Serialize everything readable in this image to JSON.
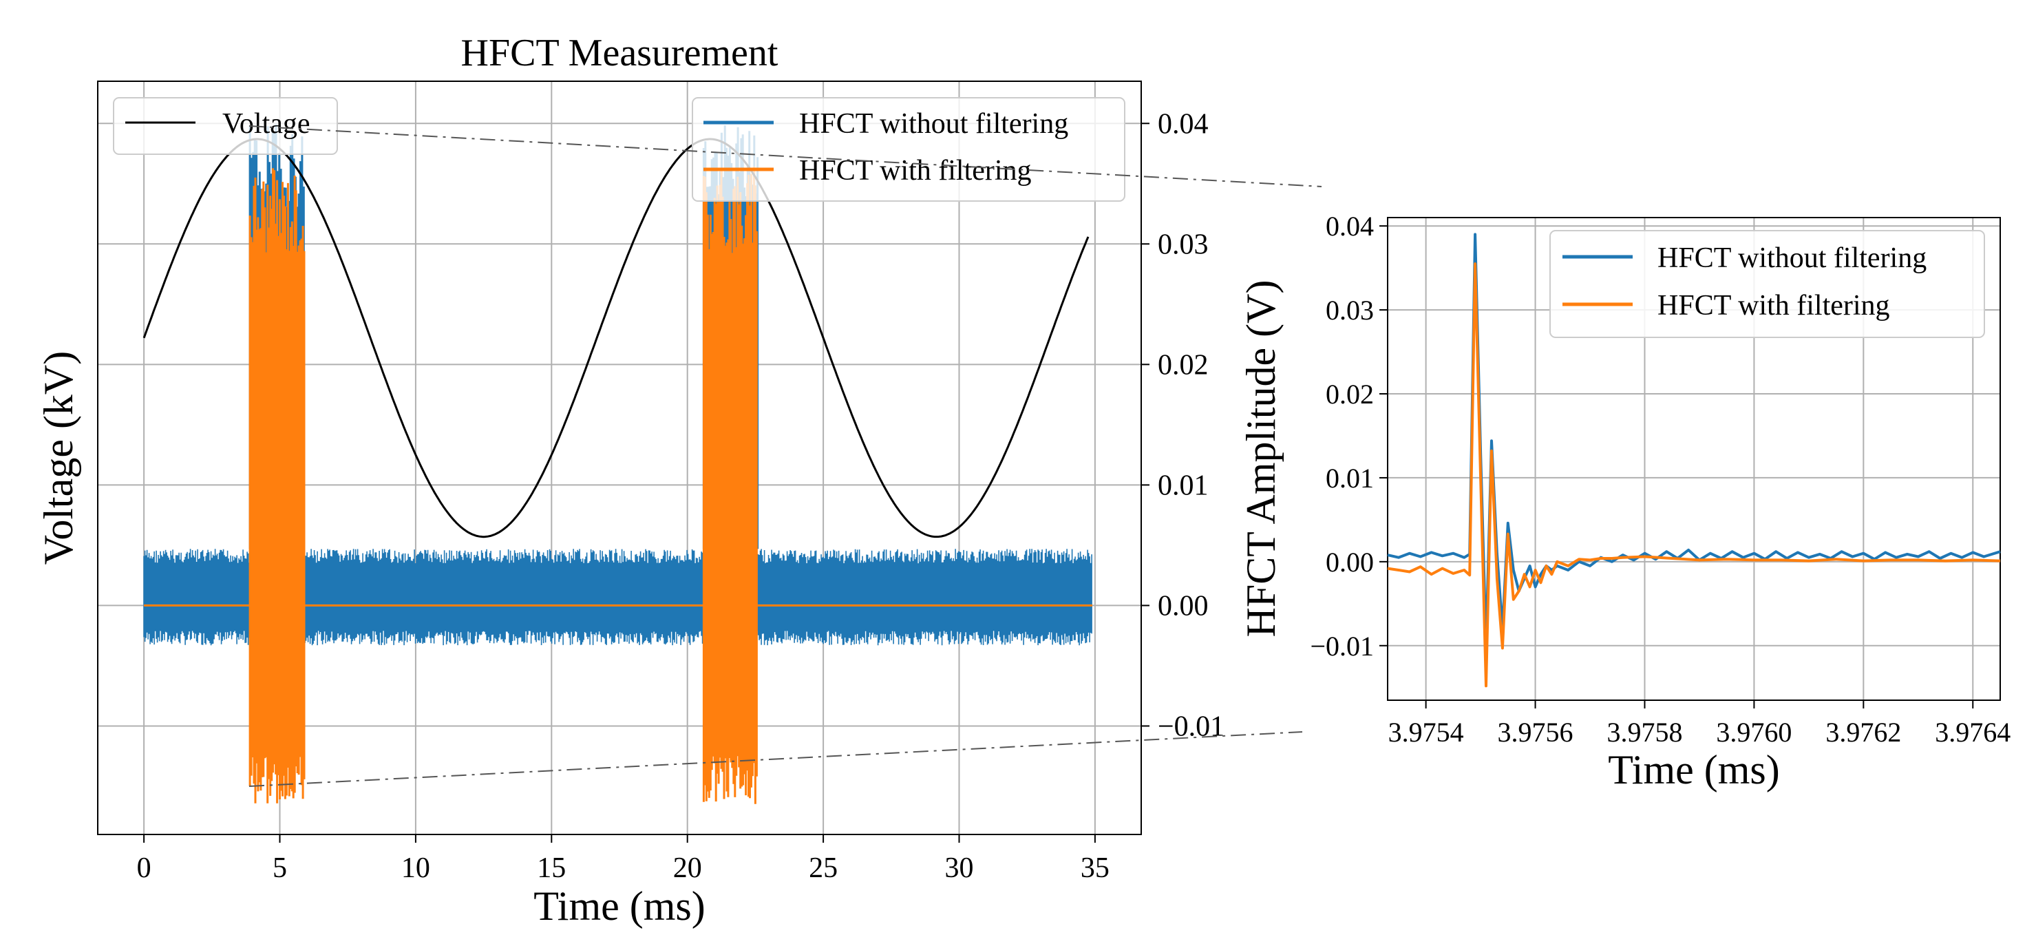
{
  "chart_data": [
    {
      "type": "line",
      "id": "main",
      "title": "HFCT Measurement",
      "xlabel": "Time (ms)",
      "ylabel": "Voltage (kV)",
      "xlim": [
        -1.7,
        36.7
      ],
      "xticks": [
        0,
        5,
        10,
        15,
        20,
        25,
        30,
        35
      ],
      "xtick_labels": [
        "0",
        "5",
        "10",
        "15",
        "20",
        "25",
        "30",
        "35"
      ],
      "y_right_label": "",
      "y_right_lim": [
        -0.019,
        0.0435
      ],
      "y_right_ticks": [
        -0.01,
        0.0,
        0.01,
        0.02,
        0.03,
        0.04
      ],
      "y_right_tick_labels": [
        "−0.01",
        "0.00",
        "0.01",
        "0.02",
        "0.03",
        "0.04"
      ],
      "grid": true,
      "voltage": {
        "name": "Voltage",
        "color": "#000000",
        "amplitude_right_units": 0.0165,
        "offset_right_units": 0.0235,
        "period_ms": 16.667,
        "phase_zero_ms": 0.0,
        "t_end_ms": 34.8
      },
      "series": [
        {
          "name": "HFCT without filtering",
          "color": "#1f77b4",
          "noise_band": [
            -0.0033,
            0.0047
          ],
          "t_range": [
            0,
            34.9
          ],
          "burst_windows": [
            [
              3.9,
              5.9
            ],
            [
              20.6,
              22.6
            ]
          ],
          "burst_range": [
            -0.0155,
            0.04
          ]
        },
        {
          "name": "HFCT with filtering",
          "color": "#ff7f0e",
          "baseline": 0.0,
          "t_range": [
            0,
            34.9
          ],
          "burst_windows": [
            [
              3.9,
              5.9
            ],
            [
              20.6,
              22.6
            ]
          ],
          "burst_range": [
            -0.0165,
            0.0365
          ]
        }
      ],
      "legend_left": [
        "Voltage"
      ],
      "legend_right": [
        "HFCT without filtering",
        "HFCT with filtering"
      ]
    },
    {
      "type": "line",
      "id": "inset",
      "title": "",
      "xlabel": "Time (ms)",
      "ylabel": "HFCT Amplitude (V)",
      "xlim": [
        3.97533,
        3.97645
      ],
      "xticks": [
        3.9754,
        3.9756,
        3.9758,
        3.976,
        3.9762,
        3.9764
      ],
      "xtick_labels": [
        "3.9754",
        "3.9756",
        "3.9758",
        "3.9760",
        "3.9762",
        "3.9764"
      ],
      "ylim": [
        -0.0165,
        0.041
      ],
      "yticks": [
        -0.01,
        0.0,
        0.01,
        0.02,
        0.03,
        0.04
      ],
      "ytick_labels": [
        "−0.01",
        "0.00",
        "0.01",
        "0.02",
        "0.03",
        "0.04"
      ],
      "grid": true,
      "series": [
        {
          "name": "HFCT without filtering",
          "color": "#1f77b4",
          "x": [
            3.97533,
            3.97535,
            3.97537,
            3.97539,
            3.97541,
            3.97543,
            3.97545,
            3.97547,
            3.97548,
            3.97549,
            3.9755,
            3.97551,
            3.97552,
            3.97553,
            3.97554,
            3.97555,
            3.97556,
            3.97557,
            3.97558,
            3.97559,
            3.9756,
            3.97561,
            3.97562,
            3.97563,
            3.97564,
            3.97566,
            3.97568,
            3.9757,
            3.97572,
            3.97574,
            3.97576,
            3.97578,
            3.9758,
            3.97582,
            3.97584,
            3.97586,
            3.97588,
            3.9759,
            3.97592,
            3.97594,
            3.97596,
            3.97598,
            3.976,
            3.97602,
            3.97604,
            3.97606,
            3.97608,
            3.9761,
            3.97612,
            3.97614,
            3.97616,
            3.97618,
            3.9762,
            3.97622,
            3.97624,
            3.97626,
            3.97628,
            3.9763,
            3.97632,
            3.97634,
            3.97636,
            3.97638,
            3.9764,
            3.97642,
            3.97645
          ],
          "y": [
            0.0008,
            0.0005,
            0.001,
            0.0006,
            0.0011,
            0.0007,
            0.001,
            0.0005,
            0.0009,
            0.039,
            0.013,
            -0.01,
            0.0144,
            0.001,
            -0.008,
            0.0046,
            -0.001,
            -0.0035,
            -0.002,
            -0.0005,
            -0.003,
            -0.0015,
            -0.0005,
            -0.001,
            -0.0005,
            -0.001,
            0.0,
            -0.0005,
            0.0005,
            0.0,
            0.0008,
            0.0002,
            0.001,
            0.0003,
            0.0012,
            0.0004,
            0.0014,
            0.0002,
            0.001,
            0.0004,
            0.0012,
            0.0005,
            0.001,
            0.0003,
            0.0012,
            0.0004,
            0.0011,
            0.0005,
            0.0009,
            0.0004,
            0.0012,
            0.0006,
            0.001,
            0.0003,
            0.0011,
            0.0005,
            0.0009,
            0.0006,
            0.0012,
            0.0004,
            0.001,
            0.0005,
            0.0011,
            0.0006,
            0.0012
          ]
        },
        {
          "name": "HFCT with filtering",
          "color": "#ff7f0e",
          "x": [
            3.97533,
            3.97535,
            3.97537,
            3.97539,
            3.97541,
            3.97543,
            3.97545,
            3.97547,
            3.97548,
            3.97549,
            3.9755,
            3.97551,
            3.97552,
            3.97553,
            3.97554,
            3.97555,
            3.97556,
            3.97557,
            3.97558,
            3.97559,
            3.9756,
            3.97561,
            3.97562,
            3.97563,
            3.97564,
            3.97566,
            3.97568,
            3.9757,
            3.97572,
            3.97574,
            3.97576,
            3.9758,
            3.97585,
            3.9759,
            3.97595,
            3.976,
            3.97605,
            3.9761,
            3.97615,
            3.9762,
            3.97625,
            3.9763,
            3.97635,
            3.9764,
            3.97645
          ],
          "y": [
            -0.0008,
            -0.001,
            -0.0012,
            -0.0006,
            -0.0015,
            -0.0008,
            -0.0014,
            -0.001,
            -0.0016,
            0.0355,
            0.01,
            -0.0148,
            0.0132,
            -0.002,
            -0.0103,
            0.0033,
            -0.0045,
            -0.0035,
            -0.0015,
            -0.003,
            -0.001,
            -0.0025,
            -0.0005,
            -0.0015,
            0.0,
            -0.0005,
            0.0003,
            0.0002,
            0.0004,
            0.0004,
            0.0005,
            0.0006,
            0.0004,
            0.0002,
            0.0003,
            0.0002,
            0.0002,
            0.0001,
            0.0003,
            0.0001,
            0.0002,
            0.0002,
            0.0001,
            0.0002,
            0.0001
          ]
        }
      ],
      "legend": [
        "HFCT without filtering",
        "HFCT with filtering"
      ]
    }
  ]
}
